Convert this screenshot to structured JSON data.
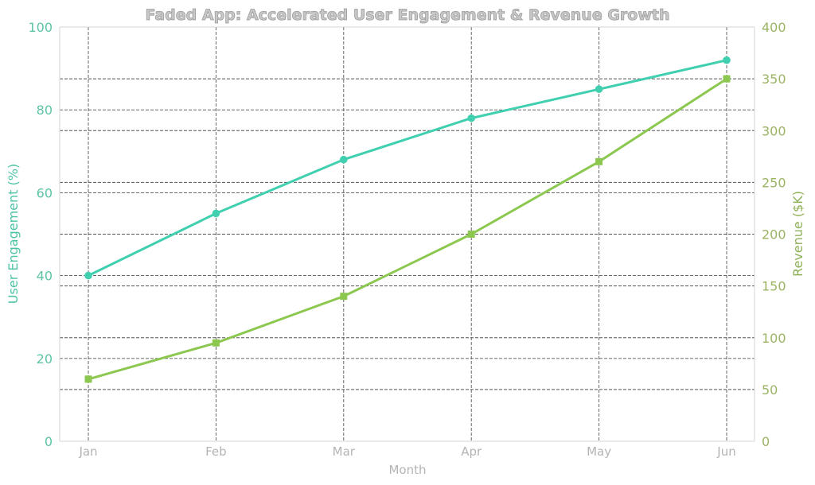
{
  "chart_data": {
    "type": "line",
    "title": "Faded App: Accelerated User Engagement & Revenue Growth",
    "xlabel": "Month",
    "categories": [
      "Jan",
      "Feb",
      "Mar",
      "Apr",
      "May",
      "Jun"
    ],
    "series": [
      {
        "values": [
          40,
          55,
          68,
          78,
          85,
          92
        ],
        "axis": "left",
        "color": "#40d0b0"
      },
      {
        "values": [
          60,
          95,
          140,
          200,
          270,
          350
        ],
        "axis": "right",
        "color": "#8cc850"
      }
    ],
    "y_left": {
      "label": "User Engagement (%)",
      "range": [
        0,
        100
      ],
      "ticks": [
        0,
        20,
        40,
        60,
        80,
        100
      ],
      "color": "#4fc3a6"
    },
    "y_right": {
      "label": "Revenue ($K)",
      "range": [
        0,
        400
      ],
      "ticks": [
        0,
        50,
        100,
        150,
        200,
        250,
        300,
        350,
        400
      ],
      "color": "#8fb157"
    },
    "grid": true,
    "legend": "none"
  }
}
